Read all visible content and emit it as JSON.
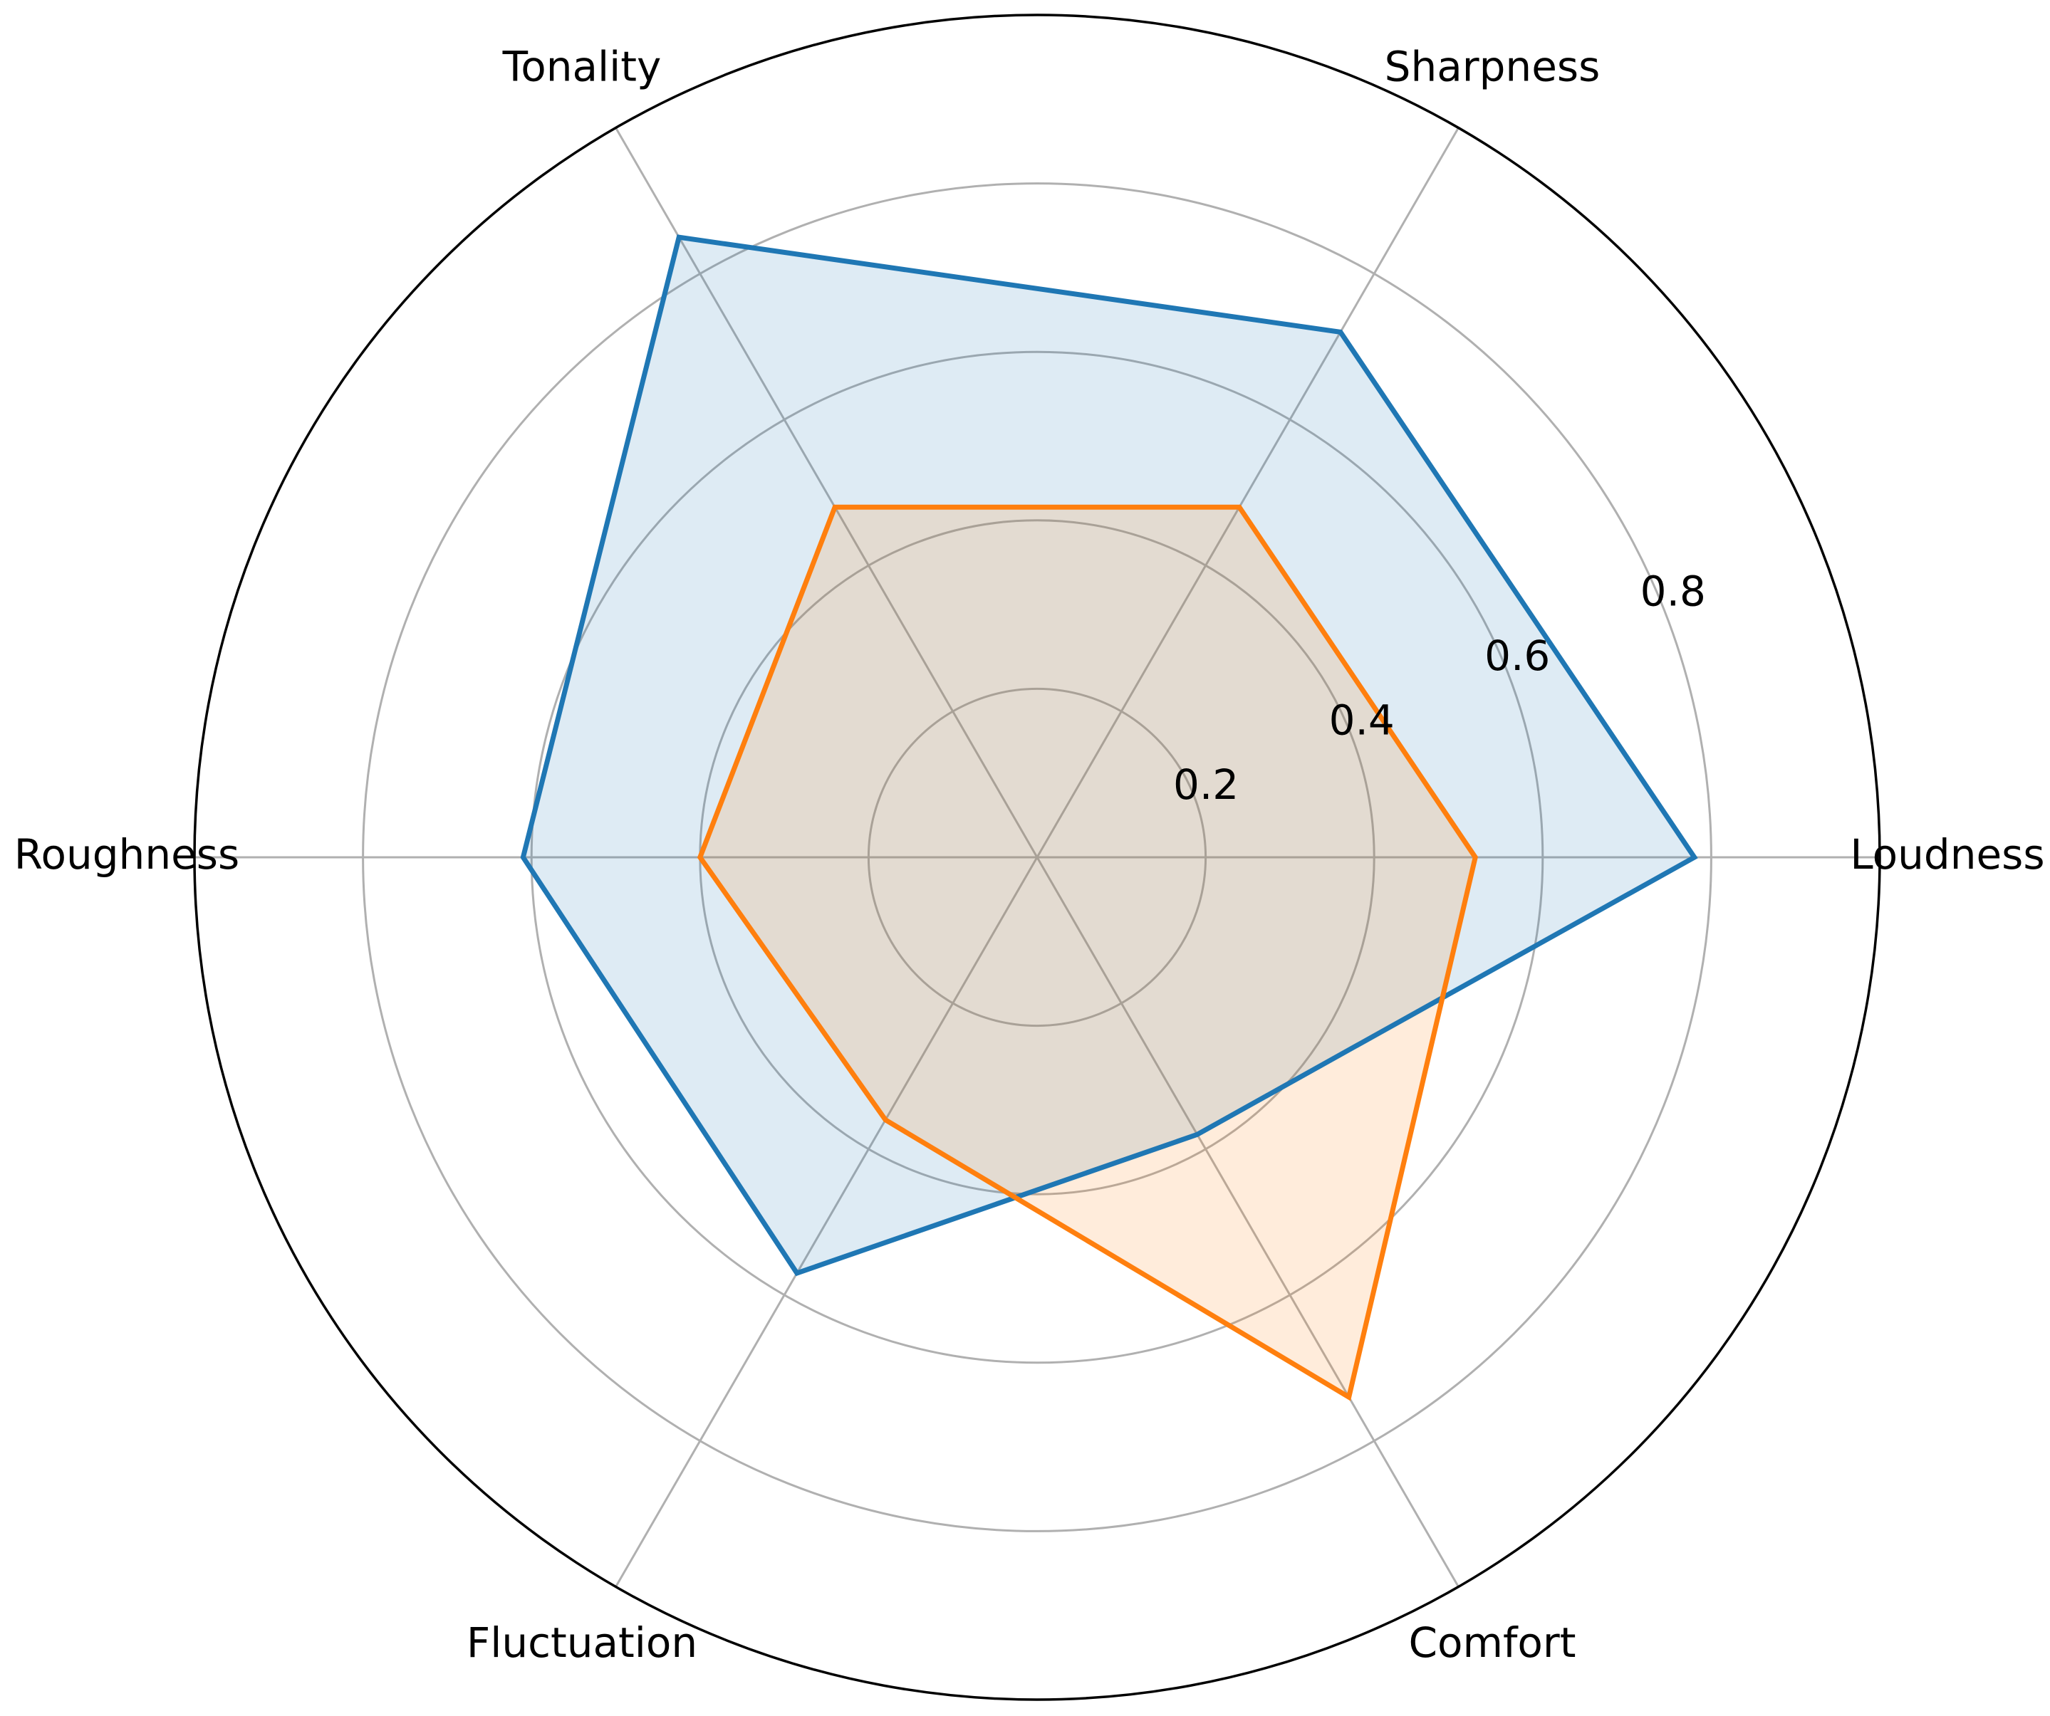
{
  "chart_data": {
    "type": "radar",
    "categories": [
      "Loudness",
      "Sharpness",
      "Tonality",
      "Roughness",
      "Fluctuation",
      "Comfort"
    ],
    "rlim": [
      0,
      1
    ],
    "rticks": [
      0.2,
      0.4,
      0.6,
      0.8
    ],
    "rtick_labels": [
      "0.2",
      "0.4",
      "0.6",
      "0.8"
    ],
    "grid": true,
    "series": [
      {
        "values": [
          0.78,
          0.72,
          0.85,
          0.61,
          0.57,
          0.38
        ],
        "color": "#1f77b4",
        "fill_color": "#1f77b4",
        "fill_opacity": 0.15
      },
      {
        "values": [
          0.52,
          0.48,
          0.48,
          0.4,
          0.36,
          0.74
        ],
        "color": "#ff7f0e",
        "fill_color": "#ff7f0e",
        "fill_opacity": 0.15
      }
    ]
  }
}
